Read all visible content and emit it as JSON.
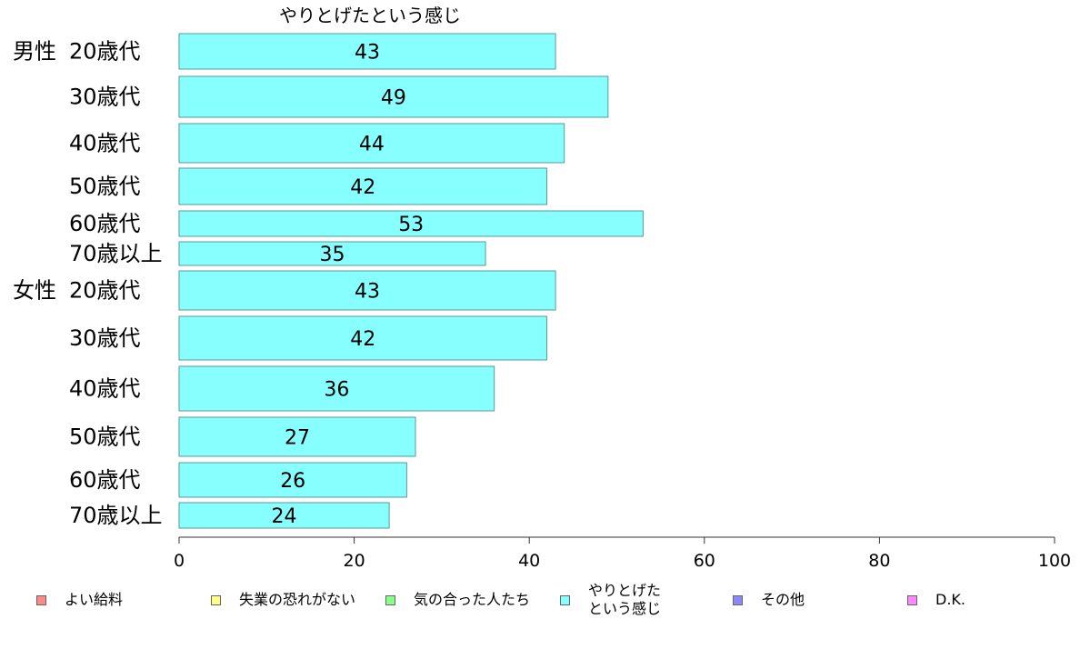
{
  "chart_data": {
    "type": "bar",
    "orientation": "horizontal",
    "title": "やりとげたという感じ",
    "groups": [
      {
        "name": "男性",
        "categories": [
          "20歳代",
          "30歳代",
          "40歳代",
          "50歳代",
          "60歳代",
          "70歳以上"
        ],
        "values": [
          43,
          49,
          44,
          42,
          53,
          35
        ]
      },
      {
        "name": "女性",
        "categories": [
          "20歳代",
          "30歳代",
          "40歳代",
          "50歳代",
          "60歳代",
          "70歳以上"
        ],
        "values": [
          43,
          42,
          36,
          27,
          26,
          24
        ]
      }
    ],
    "xlim": [
      0,
      100
    ],
    "xticks": [
      "0",
      "20",
      "40",
      "60",
      "80",
      "100"
    ],
    "grid": false,
    "legend_position": "bottom",
    "bar_color": "#88ffff"
  },
  "legend": {
    "items": [
      {
        "label": "よい給料",
        "color": "#ff8888"
      },
      {
        "label": "失業の恐れがない",
        "color": "#ffff88"
      },
      {
        "label": "気の合った人たち",
        "color": "#88ff88"
      },
      {
        "label": "やりとげた\nという感じ",
        "color": "#88ffff"
      },
      {
        "label": "その他",
        "color": "#8888ff"
      },
      {
        "label": "D.K.",
        "color": "#ff88ff"
      }
    ]
  }
}
